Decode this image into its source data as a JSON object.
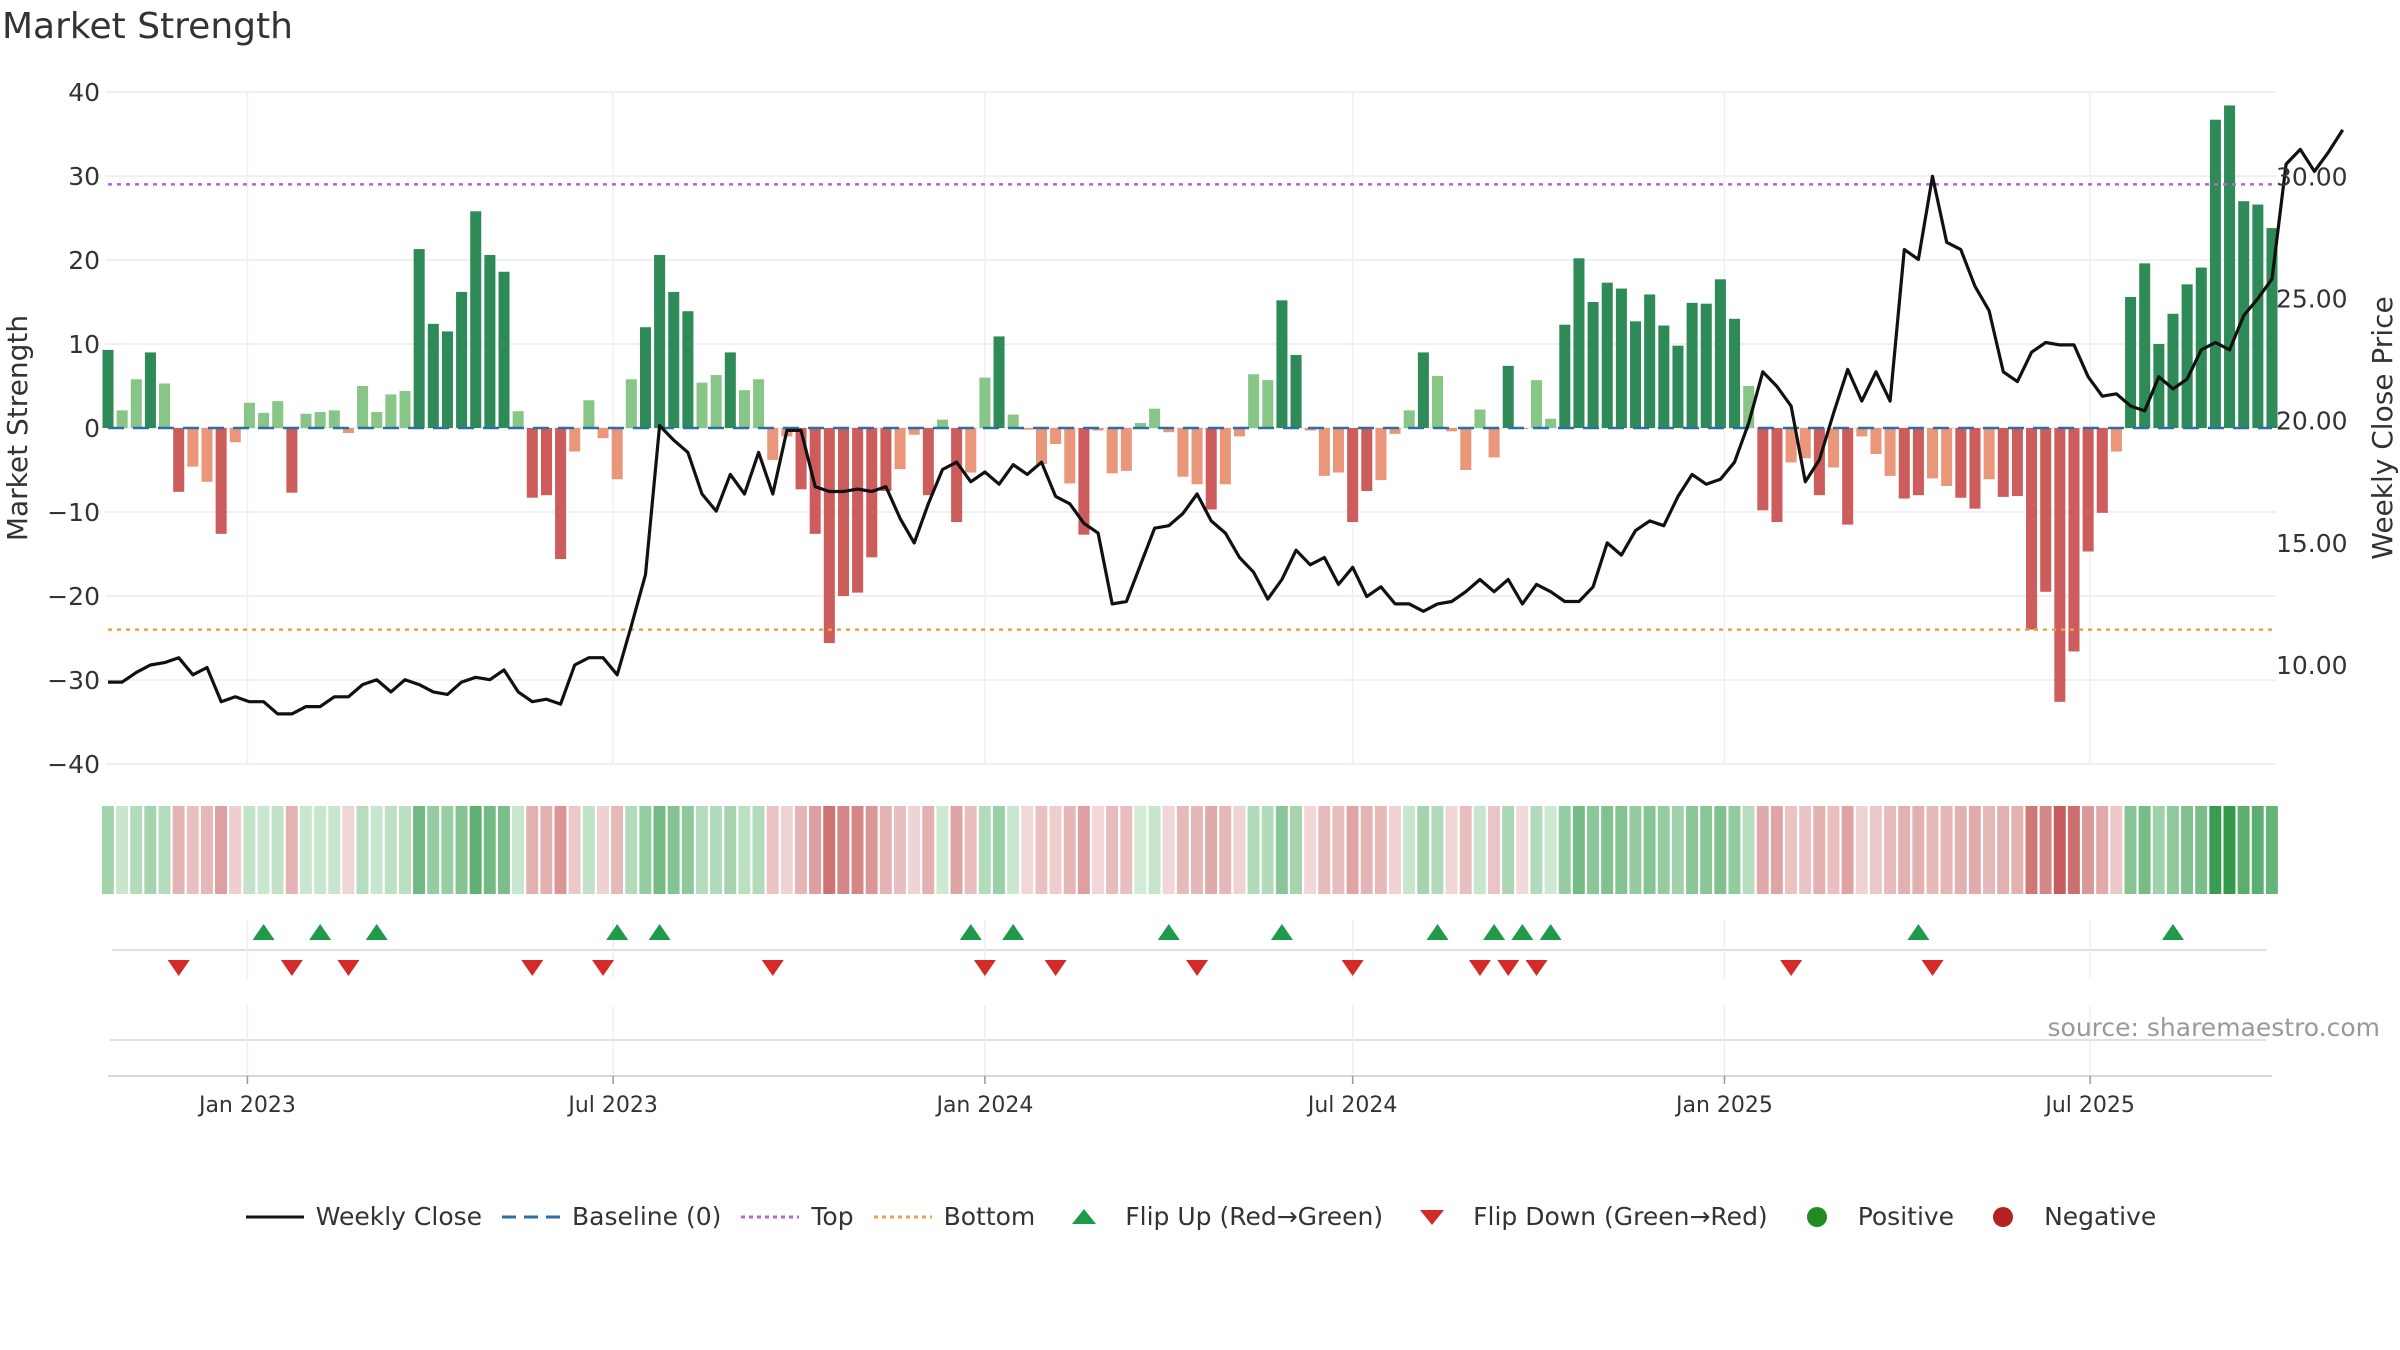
{
  "chart_data": {
    "type": "bar",
    "title": "Market Strength",
    "source": "source: sharemaestro.com",
    "left_axis": {
      "label": "Market Strength",
      "ticks": [
        40,
        30,
        20,
        10,
        0,
        -10,
        -20,
        -30,
        -40
      ],
      "range": [
        -40,
        40
      ]
    },
    "right_axis": {
      "label": "Weekly Close Price",
      "ticks": [
        "30.00",
        "25.00",
        "20.00",
        "15.00",
        "10.00"
      ],
      "range": [
        5.95,
        33.45
      ]
    },
    "x_axis": {
      "start": "2022-10-24",
      "end": "2025-09-29",
      "tick_labels": [
        {
          "date": "2023-01-01",
          "label": "Jan 2023"
        },
        {
          "date": "2023-07-01",
          "label": "Jul 2023"
        },
        {
          "date": "2024-01-01",
          "label": "Jan 2024"
        },
        {
          "date": "2024-07-01",
          "label": "Jul 2024"
        },
        {
          "date": "2025-01-01",
          "label": "Jan 2025"
        },
        {
          "date": "2025-07-01",
          "label": "Jul 2025"
        }
      ]
    },
    "reference_lines": {
      "baseline": 0,
      "top": 29,
      "bottom": -24
    },
    "strength_values": [
      9.3,
      2.1,
      5.8,
      9.0,
      5.3,
      -7.6,
      -4.6,
      -6.4,
      -12.6,
      -1.7,
      3.0,
      1.8,
      3.2,
      -7.7,
      1.7,
      1.9,
      2.1,
      -0.6,
      5.0,
      1.9,
      4.0,
      4.4,
      21.3,
      12.4,
      11.5,
      16.2,
      25.8,
      20.6,
      18.6,
      2.0,
      -8.3,
      -8.0,
      -15.6,
      -2.8,
      3.3,
      -1.2,
      -6.1,
      5.8,
      12.0,
      20.6,
      16.2,
      13.9,
      5.4,
      6.3,
      9.0,
      4.5,
      5.8,
      -3.8,
      -1.0,
      -7.3,
      -12.6,
      -25.6,
      -20.0,
      -19.6,
      -15.4,
      -7.5,
      -4.9,
      -0.8,
      -8.0,
      1.0,
      -11.2,
      -5.3,
      6.0,
      10.9,
      1.6,
      -0.2,
      -4.3,
      -1.9,
      -6.6,
      -12.7,
      -0.3,
      -5.4,
      -5.1,
      0.6,
      2.3,
      -0.5,
      -5.8,
      -6.7,
      -9.7,
      -6.7,
      -1.0,
      6.4,
      5.7,
      15.2,
      8.7,
      -0.3,
      -5.7,
      -5.3,
      -11.2,
      -7.5,
      -6.2,
      -0.7,
      2.1,
      9.0,
      6.2,
      -0.4,
      -5.0,
      2.2,
      -3.5,
      7.4,
      -0.1,
      5.7,
      1.1,
      12.3,
      20.2,
      15.0,
      17.3,
      16.6,
      12.7,
      15.9,
      12.2,
      9.8,
      14.9,
      14.8,
      17.7,
      13.0,
      5.0,
      -9.8,
      -11.2,
      -4.1,
      -3.6,
      -8.0,
      -4.7,
      -11.5,
      -1.0,
      -3.1,
      -5.7,
      -8.4,
      -8.0,
      -6.0,
      -6.9,
      -8.3,
      -9.6,
      -6.1,
      -8.2,
      -8.1,
      -24.0,
      -19.5,
      -32.6,
      -26.6,
      -14.7,
      -10.1,
      -2.8,
      15.6,
      19.6,
      10.0,
      13.6,
      17.1,
      19.1,
      36.7,
      38.4,
      27.0,
      26.6,
      23.8
    ],
    "weekly_close": [
      9.3,
      9.3,
      9.7,
      10.0,
      10.1,
      10.3,
      9.6,
      9.9,
      8.5,
      8.7,
      8.5,
      8.5,
      8.0,
      8.0,
      8.3,
      8.3,
      8.7,
      8.7,
      9.2,
      9.4,
      8.9,
      9.4,
      9.2,
      8.9,
      8.8,
      9.3,
      9.5,
      9.4,
      9.8,
      8.9,
      8.5,
      8.6,
      8.4,
      10.0,
      10.3,
      10.3,
      9.6,
      11.6,
      13.7,
      19.8,
      19.2,
      18.7,
      17.0,
      16.3,
      17.8,
      17.0,
      18.7,
      17.0,
      19.6,
      19.6,
      17.3,
      17.1,
      17.1,
      17.2,
      17.1,
      17.3,
      16.0,
      15.0,
      16.6,
      18.0,
      18.3,
      17.5,
      17.9,
      17.4,
      18.2,
      17.8,
      18.3,
      16.9,
      16.6,
      15.8,
      15.4,
      12.5,
      12.6,
      14.1,
      15.6,
      15.7,
      16.2,
      17.0,
      15.9,
      15.4,
      14.4,
      13.8,
      12.7,
      13.5,
      14.7,
      14.1,
      14.4,
      13.3,
      14.0,
      12.8,
      13.2,
      12.5,
      12.5,
      12.2,
      12.5,
      12.6,
      13.0,
      13.5,
      13.0,
      13.5,
      12.5,
      13.3,
      13.0,
      12.6,
      12.6,
      13.2,
      15.0,
      14.5,
      15.5,
      15.9,
      15.7,
      16.9,
      17.8,
      17.4,
      17.6,
      18.3,
      19.9,
      22.0,
      21.4,
      20.6,
      17.5,
      18.4,
      20.3,
      22.1,
      20.8,
      22.0,
      20.8,
      27.0,
      26.6,
      30.0,
      27.3,
      27.0,
      25.5,
      24.5,
      22.0,
      21.6,
      22.8,
      23.2,
      23.1,
      23.1,
      21.8,
      21.0,
      21.1,
      20.6,
      20.4,
      21.8,
      21.3,
      21.7,
      22.9,
      23.2,
      22.9,
      24.3,
      25.0,
      25.8,
      30.5,
      31.1,
      30.2,
      31.0,
      31.9
    ],
    "flip_up_indices": [
      11,
      15,
      19,
      36,
      39,
      61,
      64,
      75,
      83,
      94,
      98,
      100,
      102,
      128,
      146
    ],
    "flip_down_indices": [
      5,
      13,
      17,
      30,
      35,
      47,
      62,
      67,
      77,
      88,
      97,
      99,
      101,
      119,
      129
    ],
    "legend": [
      "Weekly Close",
      "Baseline (0)",
      "Top",
      "Bottom",
      "Flip Up (Red→Green)",
      "Flip Down (Green→Red)",
      "Positive",
      "Negative"
    ],
    "grid": true,
    "colors": {
      "price_line": "#111111",
      "baseline": "#2b6ea8",
      "top": "#b566d6",
      "bottom": "#f0a04b",
      "flip_up": "#1e9a4a",
      "flip_down": "#d42a2a",
      "positive": "#228b22",
      "negative": "#b22222",
      "bar_pos_strong": "#2e8b57",
      "bar_pos_weak": "#88c688",
      "bar_neg_strong": "#cd5c5c",
      "bar_neg_weak": "#e9967a"
    }
  }
}
